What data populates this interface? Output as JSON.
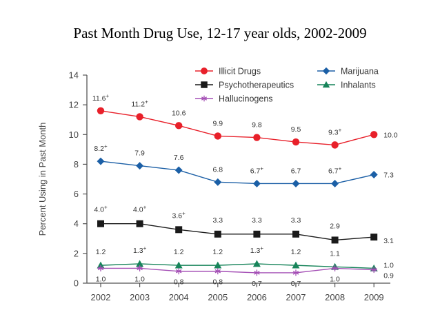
{
  "chart_data": {
    "type": "line",
    "title": "Past Month Drug Use, 12-17 year olds, 2002-2009",
    "xlabel": "",
    "ylabel": "Percent Using in Past Month",
    "ylim": [
      0,
      14
    ],
    "yticks": [
      "0",
      "2",
      "4",
      "6",
      "8",
      "10",
      "12",
      "14"
    ],
    "ytick_values": [
      0,
      2,
      4,
      6,
      8,
      10,
      12,
      14
    ],
    "x": [
      "2002",
      "2003",
      "2004",
      "2005",
      "2006",
      "2007",
      "2008",
      "2009"
    ],
    "grid": false,
    "legend_position": "top",
    "series": [
      {
        "name": "Illicit Drugs",
        "color": "#e8202a",
        "marker": "circle",
        "values": [
          11.6,
          11.2,
          10.6,
          9.9,
          9.8,
          9.5,
          9.3,
          10.0
        ],
        "labels": [
          "11.6",
          "11.2",
          "10.6",
          "9.9",
          "9.8",
          "9.5",
          "9.3",
          "10.0"
        ],
        "significant": [
          true,
          true,
          false,
          false,
          false,
          false,
          true,
          false
        ]
      },
      {
        "name": "Marijuana",
        "color": "#1b5fa6",
        "marker": "diamond",
        "values": [
          8.2,
          7.9,
          7.6,
          6.8,
          6.7,
          6.7,
          6.7,
          7.3
        ],
        "labels": [
          "8.2",
          "7.9",
          "7.6",
          "6.8",
          "6.7",
          "6.7",
          "6.7",
          "7.3"
        ],
        "significant": [
          true,
          false,
          false,
          false,
          true,
          false,
          true,
          false
        ]
      },
      {
        "name": "Psychotherapeutics",
        "color": "#1a1a1a",
        "marker": "square",
        "values": [
          4.0,
          4.0,
          3.6,
          3.3,
          3.3,
          3.3,
          2.9,
          3.1
        ],
        "labels": [
          "4.0",
          "4.0",
          "3.6",
          "3.3",
          "3.3",
          "3.3",
          "2.9",
          "3.1"
        ],
        "significant": [
          true,
          true,
          true,
          false,
          false,
          false,
          false,
          false
        ]
      },
      {
        "name": "Inhalants",
        "color": "#17845a",
        "marker": "triangle",
        "values": [
          1.2,
          1.3,
          1.2,
          1.2,
          1.3,
          1.2,
          1.1,
          1.0
        ],
        "labels": [
          "1.2",
          "1.3",
          "1.2",
          "1.2",
          "1.3",
          "1.2",
          "1.1",
          "1.0"
        ],
        "significant": [
          false,
          true,
          false,
          false,
          true,
          false,
          false,
          false
        ]
      },
      {
        "name": "Hallucinogens",
        "color": "#a44fb5",
        "marker": "asterisk",
        "values": [
          1.0,
          1.0,
          0.8,
          0.8,
          0.7,
          0.7,
          1.0,
          0.9
        ],
        "labels": [
          "1.0",
          "1.0",
          "0.8",
          "0.8",
          "0.7",
          "0.7",
          "1.0",
          "0.9"
        ],
        "significant": [
          false,
          false,
          false,
          false,
          false,
          false,
          false,
          false
        ]
      }
    ],
    "significance_marker": "+",
    "legend": [
      "Illicit Drugs",
      "Psychotherapeutics",
      "Hallucinogens",
      "Marijuana",
      "Inhalants"
    ]
  }
}
